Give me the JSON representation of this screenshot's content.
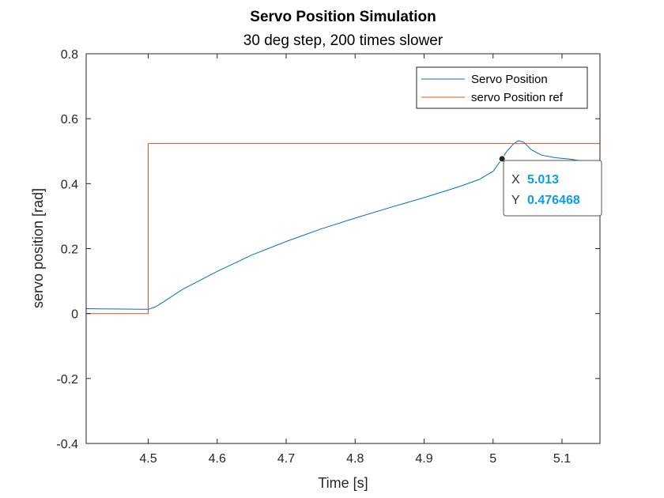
{
  "chart_data": {
    "type": "line",
    "title": "Servo Position Simulation",
    "subtitle": "30 deg step, 200 times slower",
    "xlabel": "Time [s]",
    "ylabel": "servo position [rad]",
    "xlim": [
      4.41,
      5.155
    ],
    "ylim": [
      -0.4,
      0.8
    ],
    "xticks": [
      4.5,
      4.6,
      4.7,
      4.8,
      4.9,
      5,
      5.1
    ],
    "xtick_labels": [
      "4.5",
      "4.6",
      "4.7",
      "4.8",
      "4.9",
      "5",
      "5.1"
    ],
    "yticks": [
      -0.4,
      -0.2,
      0,
      0.2,
      0.4,
      0.6,
      0.8
    ],
    "ytick_labels": [
      "-0.4",
      "-0.2",
      "0",
      "0.2",
      "0.4",
      "0.6",
      "0.8"
    ],
    "grid": false,
    "legend_position": "top-right",
    "series": [
      {
        "name": "Servo Position",
        "color": "#0072BD",
        "x": [
          4.41,
          4.45,
          4.49,
          4.5,
          4.51,
          4.52,
          4.55,
          4.6,
          4.65,
          4.7,
          4.75,
          4.8,
          4.85,
          4.9,
          4.95,
          4.98,
          5.0,
          5.013,
          5.02,
          5.03,
          5.037,
          5.045,
          5.055,
          5.07,
          5.09,
          5.11,
          5.13,
          5.155
        ],
        "y": [
          0.015,
          0.014,
          0.013,
          0.013,
          0.02,
          0.033,
          0.075,
          0.13,
          0.18,
          0.222,
          0.26,
          0.294,
          0.326,
          0.357,
          0.39,
          0.413,
          0.438,
          0.4765,
          0.5,
          0.523,
          0.532,
          0.527,
          0.505,
          0.488,
          0.48,
          0.476,
          0.47,
          0.465
        ]
      },
      {
        "name": "servo Position ref",
        "color": "#D95319",
        "x": [
          4.41,
          4.5,
          4.5,
          5.155
        ],
        "y": [
          0,
          0,
          0.5236,
          0.5236
        ]
      }
    ],
    "datatip": {
      "x_key": "X",
      "x_value": "5.013",
      "y_key": "Y",
      "y_value": "0.476468",
      "point_x": 5.013,
      "point_y": 0.476468,
      "value_color": "#0a9cf0"
    }
  }
}
